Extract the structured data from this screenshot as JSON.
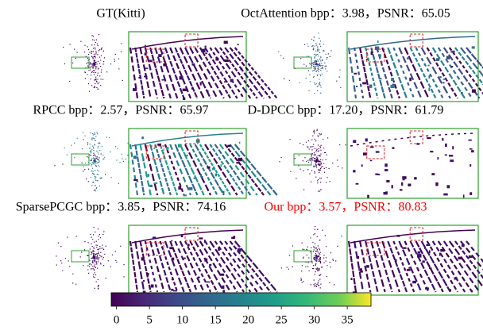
{
  "panels": [
    {
      "caption": "GT(Kitti)"
    },
    {
      "caption": "OctAttention bpp：3.98，PSNR：65.05"
    },
    {
      "caption": "RPCC bpp：2.57，PSNR：65.97"
    },
    {
      "caption": "D-DPCC bpp：17.20，PSNR：61.79"
    },
    {
      "caption": "SparsePCGC bpp：3.85，PSNR：74.16"
    },
    {
      "caption": "Our bpp：3.57，PSNR：80.83",
      "color": "#ff0000"
    }
  ],
  "colorbar": {
    "lim": [
      -0.8,
      38.6
    ],
    "ticks": [
      0,
      5,
      10,
      15,
      20,
      25,
      30,
      35
    ]
  }
}
